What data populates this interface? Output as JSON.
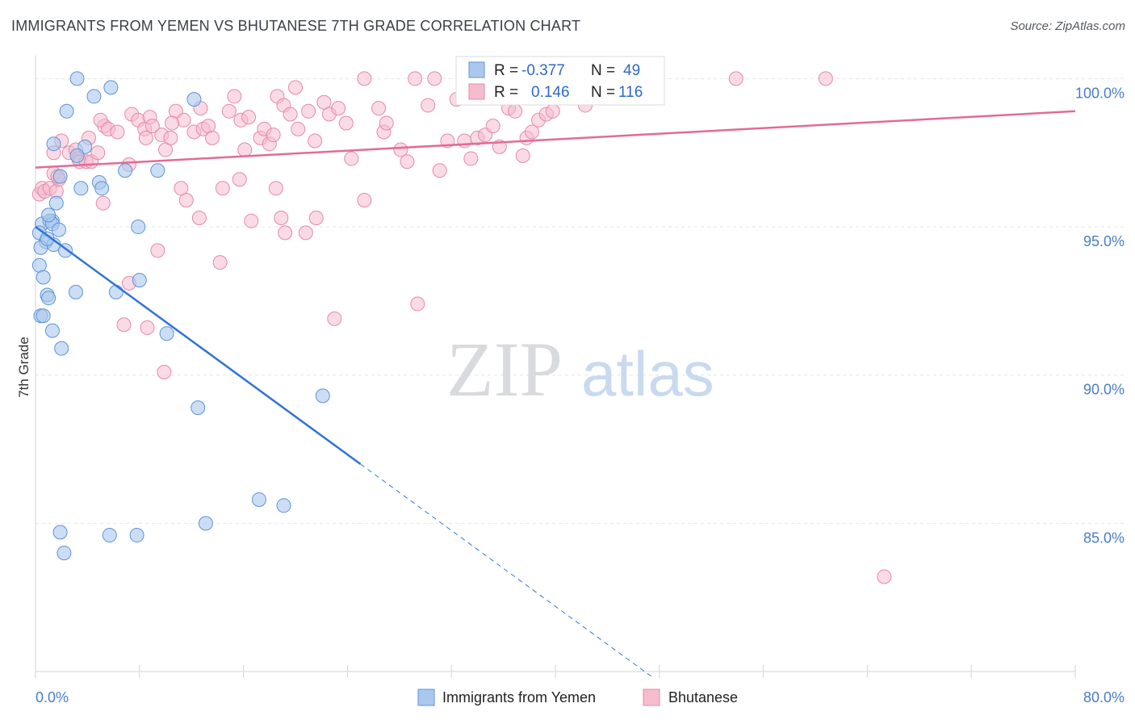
{
  "title": "IMMIGRANTS FROM YEMEN VS BHUTANESE 7TH GRADE CORRELATION CHART",
  "source": "Source: ZipAtlas.com",
  "watermark": {
    "zip": "ZIP",
    "atlas": "atlas"
  },
  "colors": {
    "blue_fill": "#aac8ee",
    "blue_stroke": "#5f93d6",
    "blue_line": "#2f74d6",
    "pink_fill": "#f5bccd",
    "pink_stroke": "#e58aa8",
    "pink_line": "#e26b96",
    "axis_text": "#4a7dc8",
    "grid": "#e4e6ea"
  },
  "legend": {
    "rows": [
      {
        "r_label": "R =",
        "r_value": "-0.377",
        "n_label": "N =",
        "n_value": "49"
      },
      {
        "r_label": "R =",
        "r_value": "0.146",
        "n_label": "N =",
        "n_value": "116"
      }
    ]
  },
  "bottom_legend": [
    "Immigrants from Yemen",
    "Bhutanese"
  ],
  "chart_data": {
    "type": "scatter",
    "title": "IMMIGRANTS FROM YEMEN VS BHUTANESE 7TH GRADE CORRELATION CHART",
    "xlabel": "",
    "ylabel": "7th Grade",
    "xlim": [
      0,
      80
    ],
    "ylim": [
      80,
      100.8
    ],
    "x_tick_labels": [
      "0.0%",
      "80.0%"
    ],
    "y_ticks": [
      85,
      90,
      95,
      100
    ],
    "y_tick_labels": [
      "85.0%",
      "90.0%",
      "95.0%",
      "100.0%"
    ],
    "grid": true,
    "legend_position": "top-center",
    "series": [
      {
        "name": "Immigrants from Yemen",
        "color": "#aac8ee",
        "R": -0.377,
        "N": 49,
        "trend": {
          "x0": 0,
          "y0": 95.0,
          "x1": 25,
          "y1": 87.0,
          "dashed_to_x": 47.5
        },
        "points": [
          [
            3.2,
            100.0
          ],
          [
            5.8,
            99.7
          ],
          [
            4.5,
            99.4
          ],
          [
            12.2,
            99.3
          ],
          [
            2.4,
            98.9
          ],
          [
            1.4,
            97.8
          ],
          [
            3.8,
            97.7
          ],
          [
            3.2,
            97.4
          ],
          [
            6.9,
            96.9
          ],
          [
            9.4,
            96.9
          ],
          [
            1.9,
            96.7
          ],
          [
            4.9,
            96.5
          ],
          [
            3.5,
            96.3
          ],
          [
            5.1,
            96.3
          ],
          [
            1.6,
            95.8
          ],
          [
            1.3,
            95.2
          ],
          [
            0.5,
            95.1
          ],
          [
            1.1,
            95.2
          ],
          [
            7.9,
            95.0
          ],
          [
            1.3,
            95.1
          ],
          [
            0.3,
            94.8
          ],
          [
            0.8,
            94.5
          ],
          [
            1.4,
            94.4
          ],
          [
            0.4,
            94.3
          ],
          [
            2.3,
            94.2
          ],
          [
            0.3,
            93.7
          ],
          [
            0.6,
            93.3
          ],
          [
            8.0,
            93.2
          ],
          [
            0.9,
            92.7
          ],
          [
            3.1,
            92.8
          ],
          [
            6.2,
            92.8
          ],
          [
            1.0,
            92.6
          ],
          [
            0.4,
            92.0
          ],
          [
            0.6,
            92.0
          ],
          [
            1.3,
            91.5
          ],
          [
            10.1,
            91.4
          ],
          [
            2.0,
            90.9
          ],
          [
            12.5,
            88.9
          ],
          [
            22.1,
            89.3
          ],
          [
            17.2,
            85.8
          ],
          [
            19.1,
            85.6
          ],
          [
            13.1,
            85.0
          ],
          [
            1.9,
            84.7
          ],
          [
            5.7,
            84.6
          ],
          [
            7.8,
            84.6
          ],
          [
            2.2,
            84.0
          ],
          [
            1.0,
            95.4
          ],
          [
            1.8,
            94.9
          ],
          [
            0.9,
            94.6
          ]
        ]
      },
      {
        "name": "Bhutanese",
        "color": "#f5bccd",
        "R": 0.146,
        "N": 116,
        "trend": {
          "x0": 0,
          "y0": 97.0,
          "x1": 80,
          "y1": 98.9
        },
        "points": [
          [
            0.3,
            96.1
          ],
          [
            0.5,
            96.3
          ],
          [
            0.7,
            96.2
          ],
          [
            1.1,
            96.3
          ],
          [
            1.6,
            96.2
          ],
          [
            1.8,
            96.6
          ],
          [
            1.4,
            96.8
          ],
          [
            1.7,
            96.7
          ],
          [
            1.4,
            97.5
          ],
          [
            2.6,
            97.5
          ],
          [
            3.1,
            97.6
          ],
          [
            3.3,
            97.3
          ],
          [
            3.4,
            97.2
          ],
          [
            3.9,
            97.2
          ],
          [
            4.3,
            97.2
          ],
          [
            4.8,
            97.5
          ],
          [
            4.1,
            98.0
          ],
          [
            5.3,
            98.4
          ],
          [
            5.0,
            98.6
          ],
          [
            5.6,
            98.3
          ],
          [
            6.3,
            98.2
          ],
          [
            7.4,
            98.8
          ],
          [
            7.9,
            98.6
          ],
          [
            8.4,
            98.3
          ],
          [
            7.2,
            97.1
          ],
          [
            8.8,
            98.7
          ],
          [
            8.5,
            98.0
          ],
          [
            9.7,
            98.1
          ],
          [
            10.0,
            97.6
          ],
          [
            10.4,
            98.0
          ],
          [
            10.8,
            98.9
          ],
          [
            11.4,
            98.6
          ],
          [
            12.2,
            98.2
          ],
          [
            12.9,
            98.3
          ],
          [
            13.3,
            98.4
          ],
          [
            13.6,
            98.0
          ],
          [
            14.9,
            98.9
          ],
          [
            15.3,
            99.4
          ],
          [
            15.8,
            98.6
          ],
          [
            16.4,
            98.7
          ],
          [
            16.1,
            97.6
          ],
          [
            17.3,
            98.0
          ],
          [
            17.6,
            98.3
          ],
          [
            18.0,
            97.8
          ],
          [
            18.3,
            98.1
          ],
          [
            18.6,
            99.4
          ],
          [
            19.1,
            99.1
          ],
          [
            19.6,
            98.8
          ],
          [
            20.2,
            98.3
          ],
          [
            21.0,
            98.9
          ],
          [
            21.5,
            97.9
          ],
          [
            22.2,
            99.2
          ],
          [
            22.6,
            98.8
          ],
          [
            23.3,
            99.0
          ],
          [
            23.9,
            98.5
          ],
          [
            24.3,
            97.3
          ],
          [
            25.3,
            100.0
          ],
          [
            26.4,
            99.0
          ],
          [
            26.8,
            98.2
          ],
          [
            27.0,
            98.5
          ],
          [
            28.1,
            97.6
          ],
          [
            28.6,
            97.2
          ],
          [
            29.2,
            100.0
          ],
          [
            30.2,
            99.1
          ],
          [
            31.1,
            96.9
          ],
          [
            31.7,
            97.9
          ],
          [
            32.4,
            99.3
          ],
          [
            33.0,
            97.9
          ],
          [
            33.5,
            97.3
          ],
          [
            34.0,
            98.0
          ],
          [
            34.6,
            98.1
          ],
          [
            35.2,
            98.4
          ],
          [
            35.7,
            97.7
          ],
          [
            36.4,
            99.0
          ],
          [
            36.9,
            98.9
          ],
          [
            37.5,
            97.4
          ],
          [
            37.8,
            98.0
          ],
          [
            38.2,
            98.2
          ],
          [
            38.7,
            98.6
          ],
          [
            39.3,
            98.8
          ],
          [
            39.8,
            98.9
          ],
          [
            40.6,
            100.0
          ],
          [
            42.3,
            99.1
          ],
          [
            47.5,
            99.9
          ],
          [
            53.9,
            100.0
          ],
          [
            60.8,
            100.0
          ],
          [
            2.0,
            97.9
          ],
          [
            5.2,
            95.8
          ],
          [
            7.2,
            93.1
          ],
          [
            11.2,
            96.3
          ],
          [
            11.6,
            95.9
          ],
          [
            12.6,
            95.3
          ],
          [
            14.4,
            96.3
          ],
          [
            15.7,
            96.6
          ],
          [
            16.6,
            95.2
          ],
          [
            18.5,
            96.3
          ],
          [
            18.9,
            95.3
          ],
          [
            19.2,
            94.8
          ],
          [
            20.8,
            94.8
          ],
          [
            21.6,
            95.3
          ],
          [
            25.3,
            95.9
          ],
          [
            9.4,
            94.2
          ],
          [
            14.2,
            93.8
          ],
          [
            6.8,
            91.7
          ],
          [
            8.6,
            91.6
          ],
          [
            23.0,
            91.9
          ],
          [
            29.4,
            92.4
          ],
          [
            9.9,
            90.1
          ],
          [
            65.3,
            83.2
          ],
          [
            30.7,
            100.0
          ],
          [
            33.2,
            100.0
          ],
          [
            41.9,
            100.0
          ],
          [
            9.0,
            98.4
          ],
          [
            10.5,
            98.5
          ],
          [
            12.7,
            99.0
          ],
          [
            20.0,
            99.7
          ]
        ]
      }
    ]
  }
}
